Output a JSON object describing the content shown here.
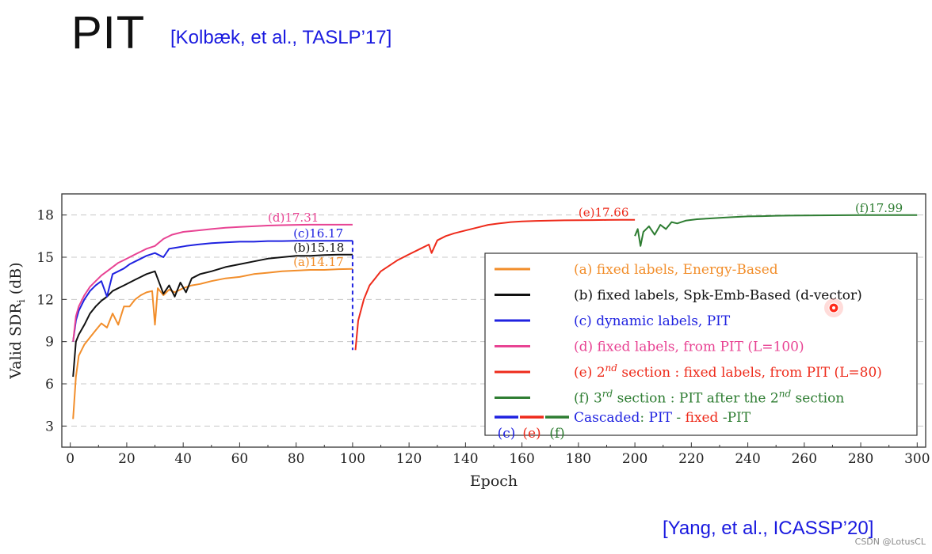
{
  "slide": {
    "title": "PIT",
    "reference_top": "[Kolbæk, et al., TASLP’17]",
    "reference_bottom": "[Yang, et al., ICASSP’20]",
    "watermark": "CSDN @LotusCL"
  },
  "chart_data": {
    "type": "line",
    "title": "",
    "xlabel": "Epoch",
    "ylabel_prefix": "Valid SDR",
    "ylabel_sub": "i",
    "ylabel_suffix": " (dB)",
    "xlim": [
      -3,
      303
    ],
    "ylim": [
      1.5,
      19.5
    ],
    "xticks": [
      0,
      20,
      40,
      60,
      80,
      100,
      120,
      140,
      160,
      180,
      200,
      220,
      240,
      260,
      280,
      300
    ],
    "yticks": [
      3,
      6,
      9,
      12,
      15,
      18
    ],
    "grid": "horizontal dashed",
    "legend_position": "lower-right",
    "series": [
      {
        "key": "a",
        "name": "(a) fixed labels, Energy-Based",
        "color": "#f28e2b",
        "x": [
          1,
          2,
          3,
          5,
          7,
          9,
          11,
          13,
          15,
          17,
          19,
          21,
          23,
          25,
          27,
          29,
          30,
          31,
          33,
          35,
          37,
          40,
          43,
          46,
          50,
          55,
          60,
          65,
          70,
          75,
          80,
          85,
          90,
          95,
          100
        ],
        "y": [
          3.5,
          6.5,
          8.0,
          8.8,
          9.3,
          9.8,
          10.3,
          10.0,
          11.0,
          10.2,
          11.5,
          11.5,
          12.0,
          12.3,
          12.5,
          12.6,
          10.2,
          12.8,
          12.3,
          12.7,
          12.5,
          12.8,
          13.0,
          13.1,
          13.3,
          13.5,
          13.6,
          13.8,
          13.9,
          14.0,
          14.05,
          14.1,
          14.1,
          14.15,
          14.17
        ]
      },
      {
        "key": "b",
        "name": "(b) fixed labels, Spk-Emb-Based (d-vector)",
        "color": "#111111",
        "x": [
          1,
          2,
          3,
          5,
          7,
          9,
          11,
          13,
          15,
          17,
          19,
          21,
          23,
          25,
          27,
          30,
          33,
          35,
          37,
          39,
          41,
          43,
          46,
          50,
          55,
          60,
          65,
          70,
          75,
          80,
          85,
          90,
          95,
          100
        ],
        "y": [
          6.5,
          9.0,
          9.5,
          10.2,
          11.0,
          11.5,
          11.9,
          12.2,
          12.6,
          12.8,
          13.0,
          13.2,
          13.4,
          13.6,
          13.8,
          14.0,
          12.4,
          13.0,
          12.2,
          13.2,
          12.5,
          13.5,
          13.8,
          14.0,
          14.3,
          14.5,
          14.7,
          14.9,
          15.0,
          15.1,
          15.1,
          15.15,
          15.18,
          15.18
        ]
      },
      {
        "key": "c",
        "name": "(c) dynamic labels, PIT",
        "color": "#1f22e0",
        "x": [
          1,
          2,
          3,
          5,
          7,
          9,
          11,
          13,
          15,
          17,
          19,
          21,
          23,
          25,
          27,
          30,
          33,
          35,
          38,
          41,
          45,
          50,
          55,
          60,
          65,
          70,
          75,
          80,
          85,
          90,
          95,
          100
        ],
        "y": [
          9.0,
          10.5,
          11.2,
          12.0,
          12.6,
          13.0,
          13.3,
          12.2,
          13.8,
          14.0,
          14.2,
          14.5,
          14.7,
          14.9,
          15.1,
          15.3,
          15.0,
          15.6,
          15.7,
          15.8,
          15.9,
          16.0,
          16.05,
          16.1,
          16.1,
          16.15,
          16.15,
          16.17,
          16.17,
          16.17,
          16.17,
          16.17
        ]
      },
      {
        "key": "c_drop",
        "name": "",
        "color": "#1f22e0",
        "dashed": true,
        "x": [
          100,
          100
        ],
        "y": [
          16.17,
          8.4
        ]
      },
      {
        "key": "d",
        "name": "(d) fixed labels, from PIT (L=100)",
        "color": "#e84393",
        "x": [
          1,
          2,
          3,
          5,
          7,
          9,
          11,
          13,
          15,
          17,
          19,
          21,
          23,
          25,
          27,
          30,
          33,
          36,
          40,
          45,
          50,
          55,
          60,
          65,
          70,
          75,
          80,
          85,
          90,
          95,
          100
        ],
        "y": [
          9.0,
          10.8,
          11.5,
          12.3,
          12.9,
          13.3,
          13.7,
          14.0,
          14.3,
          14.6,
          14.8,
          15.0,
          15.2,
          15.4,
          15.6,
          15.8,
          16.3,
          16.6,
          16.8,
          16.9,
          17.0,
          17.1,
          17.15,
          17.2,
          17.25,
          17.28,
          17.3,
          17.31,
          17.31,
          17.31,
          17.31
        ]
      },
      {
        "key": "e",
        "name": "(e) 2nd section : fixed labels, from PIT (L=80)",
        "color": "#ee2b1b",
        "x": [
          101,
          102,
          104,
          106,
          108,
          110,
          113,
          116,
          120,
          124,
          127,
          128,
          130,
          133,
          136,
          140,
          144,
          148,
          152,
          156,
          160,
          165,
          170,
          175,
          180,
          185,
          190,
          195,
          200
        ],
        "y": [
          8.4,
          10.5,
          12.0,
          13.0,
          13.5,
          14.0,
          14.4,
          14.8,
          15.2,
          15.6,
          15.9,
          15.3,
          16.2,
          16.5,
          16.7,
          16.9,
          17.1,
          17.3,
          17.4,
          17.5,
          17.55,
          17.58,
          17.6,
          17.62,
          17.63,
          17.64,
          17.65,
          17.66,
          17.66
        ]
      },
      {
        "key": "f",
        "name": "(f) 3rd section : PIT after the 2nd section",
        "color": "#2e7d32",
        "x": [
          200,
          201,
          202,
          203,
          205,
          207,
          209,
          211,
          213,
          215,
          218,
          222,
          226,
          230,
          235,
          240,
          245,
          250,
          255,
          260,
          270,
          280,
          290,
          300
        ],
        "y": [
          16.5,
          17.0,
          15.8,
          16.8,
          17.2,
          16.6,
          17.3,
          17.0,
          17.5,
          17.4,
          17.6,
          17.7,
          17.75,
          17.8,
          17.85,
          17.9,
          17.92,
          17.95,
          17.96,
          17.97,
          17.98,
          17.99,
          17.99,
          17.99
        ]
      }
    ],
    "annotations": [
      {
        "text": "(d)17.31",
        "color": "#e84393",
        "x": 70,
        "y": 17.31
      },
      {
        "text": "(c)16.17",
        "color": "#1f22e0",
        "x": 79,
        "y": 16.17
      },
      {
        "text": "(b)15.18",
        "color": "#111111",
        "x": 79,
        "y": 15.18
      },
      {
        "text": "(a)14.17",
        "color": "#f28e2b",
        "x": 79,
        "y": 14.17
      },
      {
        "text": "(e)17.66",
        "color": "#ee2b1b",
        "x": 180,
        "y": 17.66
      },
      {
        "text": "(f)17.99",
        "color": "#2e7d32",
        "x": 278,
        "y": 17.99
      }
    ],
    "legend": {
      "items": [
        {
          "color": "#f28e2b",
          "parts": [
            {
              "t": "(a) fixed labels, Energy-Based",
              "c": "#f28e2b"
            }
          ]
        },
        {
          "color": "#111111",
          "parts": [
            {
              "t": "(b) fixed labels, Spk-Emb-Based (d-vector)",
              "c": "#111111"
            }
          ]
        },
        {
          "color": "#1f22e0",
          "parts": [
            {
              "t": "(c) dynamic labels, PIT",
              "c": "#1f22e0"
            }
          ]
        },
        {
          "color": "#e84393",
          "parts": [
            {
              "t": "(d) fixed labels, from PIT (L=100)",
              "c": "#e84393"
            }
          ]
        },
        {
          "color": "#ee2b1b",
          "parts": [
            {
              "t": "(e) 2",
              "c": "#ee2b1b"
            },
            {
              "t": "nd",
              "c": "#ee2b1b",
              "sup": true
            },
            {
              "t": " section : fixed labels, from PIT (L=80)",
              "c": "#ee2b1b"
            }
          ]
        },
        {
          "color": "#2e7d32",
          "parts": [
            {
              "t": "(f) 3",
              "c": "#2e7d32"
            },
            {
              "t": "rd",
              "c": "#2e7d32",
              "sup": true
            },
            {
              "t": " section : PIT after the 2",
              "c": "#2e7d32"
            },
            {
              "t": "nd",
              "c": "#2e7d32",
              "sup": true
            },
            {
              "t": " section",
              "c": "#2e7d32"
            }
          ]
        }
      ],
      "cascaded": {
        "parts": [
          {
            "t": "Cascaded",
            "c": "#1f22e0"
          },
          {
            "t": ": ",
            "c": "#2e7d32"
          },
          {
            "t": "PIT",
            "c": "#1f22e0"
          },
          {
            "t": " - ",
            "c": "#2e7d32"
          },
          {
            "t": "fixed",
            "c": "#ee2b1b"
          },
          {
            "t": " -PIT",
            "c": "#2e7d32"
          }
        ],
        "swatches": [
          {
            "label": "(c)",
            "color": "#1f22e0"
          },
          {
            "label": "(e)",
            "color": "#ee2b1b"
          },
          {
            "label": "(f)",
            "color": "#2e7d32"
          }
        ]
      }
    }
  }
}
